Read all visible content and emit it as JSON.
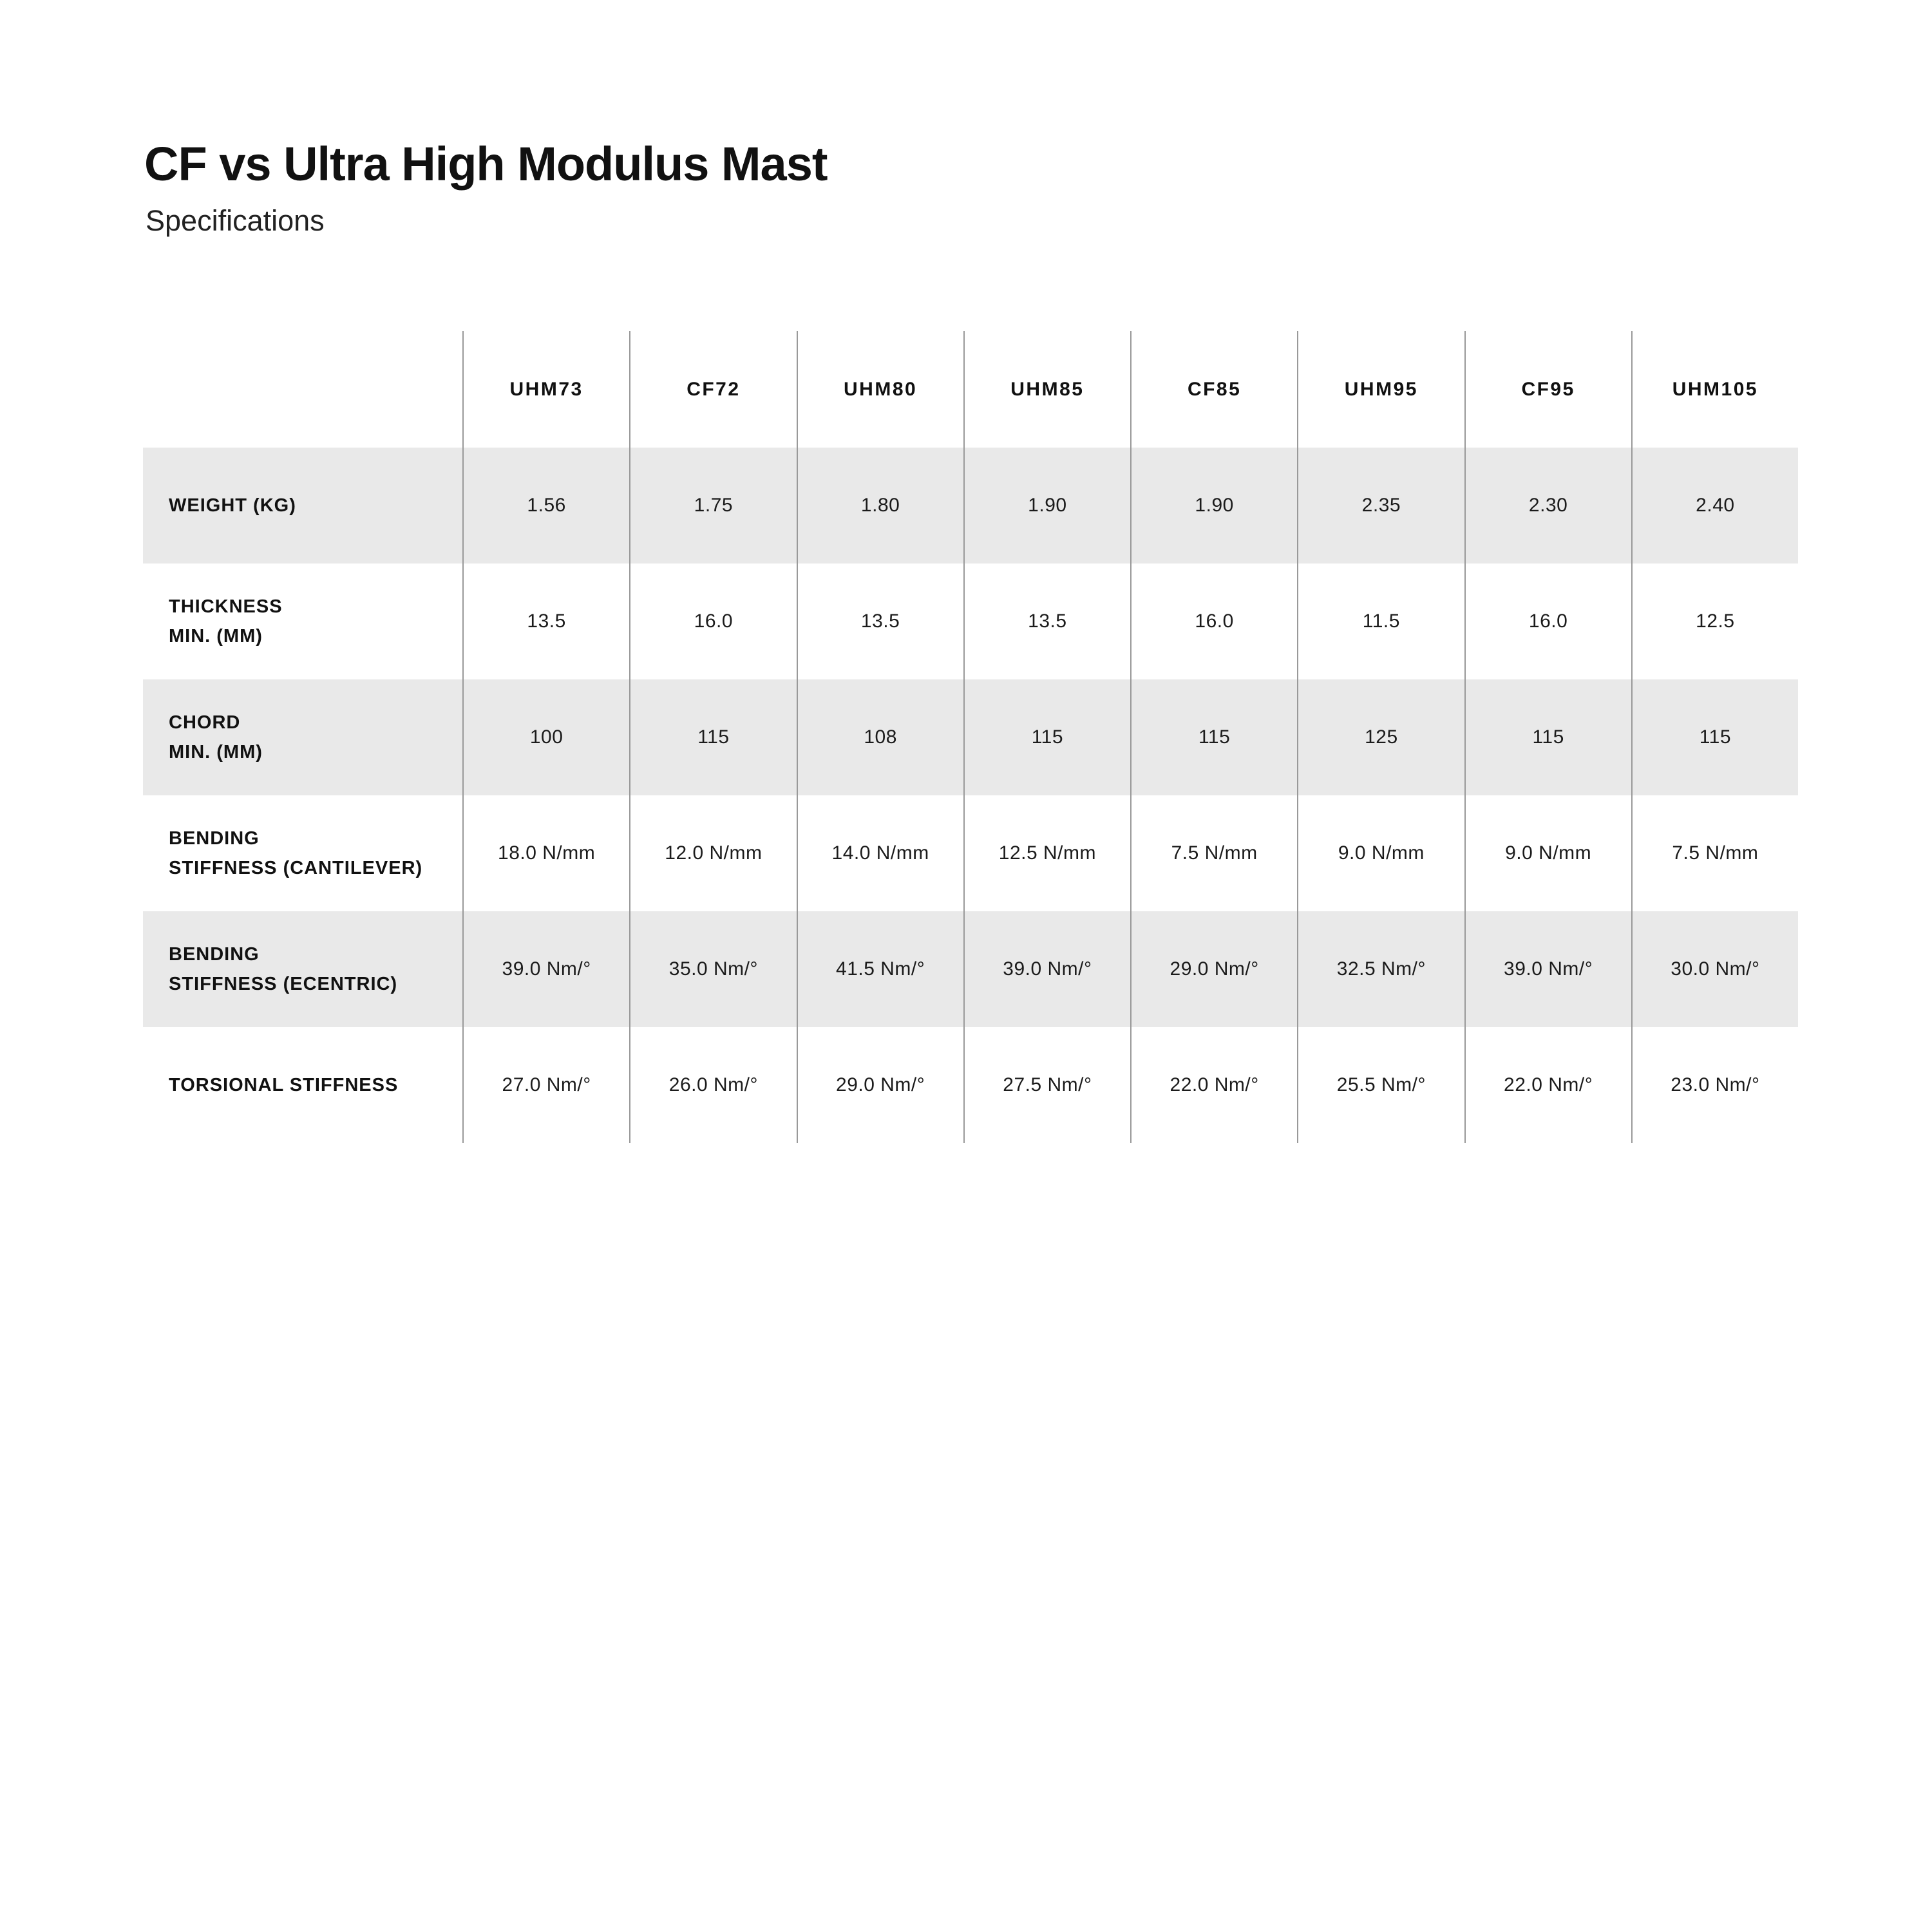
{
  "page": {
    "title": "CF vs Ultra High Modulus Mast",
    "subtitle": "Specifications"
  },
  "table": {
    "colors": {
      "shaded_row": "#e9e9e9",
      "divider": "#999999"
    },
    "columns": [
      "UHM73",
      "CF72",
      "UHM80",
      "UHM85",
      "CF85",
      "UHM95",
      "CF95",
      "UHM105"
    ],
    "rows": [
      {
        "label_lines": [
          "WEIGHT (KG)"
        ],
        "shaded": true,
        "values": [
          "1.56",
          "1.75",
          "1.80",
          "1.90",
          "1.90",
          "2.35",
          "2.30",
          "2.40"
        ]
      },
      {
        "label_lines": [
          "THICKNESS",
          "MIN. (MM)"
        ],
        "shaded": false,
        "values": [
          "13.5",
          "16.0",
          "13.5",
          "13.5",
          "16.0",
          "11.5",
          "16.0",
          "12.5"
        ]
      },
      {
        "label_lines": [
          "CHORD",
          "MIN. (MM)"
        ],
        "shaded": true,
        "values": [
          "100",
          "115",
          "108",
          "115",
          "115",
          "125",
          "115",
          "115"
        ]
      },
      {
        "label_lines": [
          "BENDING",
          "STIFFNESS (CANTILEVER)"
        ],
        "shaded": false,
        "values": [
          "18.0 N/mm",
          "12.0 N/mm",
          "14.0 N/mm",
          "12.5 N/mm",
          "7.5 N/mm",
          "9.0 N/mm",
          "9.0 N/mm",
          "7.5 N/mm"
        ]
      },
      {
        "label_lines": [
          "BENDING",
          "STIFFNESS (ECENTRIC)"
        ],
        "shaded": true,
        "values": [
          "39.0 Nm/°",
          "35.0 Nm/°",
          "41.5 Nm/°",
          "39.0 Nm/°",
          "29.0 Nm/°",
          "32.5 Nm/°",
          "39.0 Nm/°",
          "30.0 Nm/°"
        ]
      },
      {
        "label_lines": [
          "TORSIONAL STIFFNESS"
        ],
        "shaded": false,
        "values": [
          "27.0 Nm/°",
          "26.0 Nm/°",
          "29.0 Nm/°",
          "27.5 Nm/°",
          "22.0 Nm/°",
          "25.5 Nm/°",
          "22.0 Nm/°",
          "23.0 Nm/°"
        ]
      }
    ]
  }
}
